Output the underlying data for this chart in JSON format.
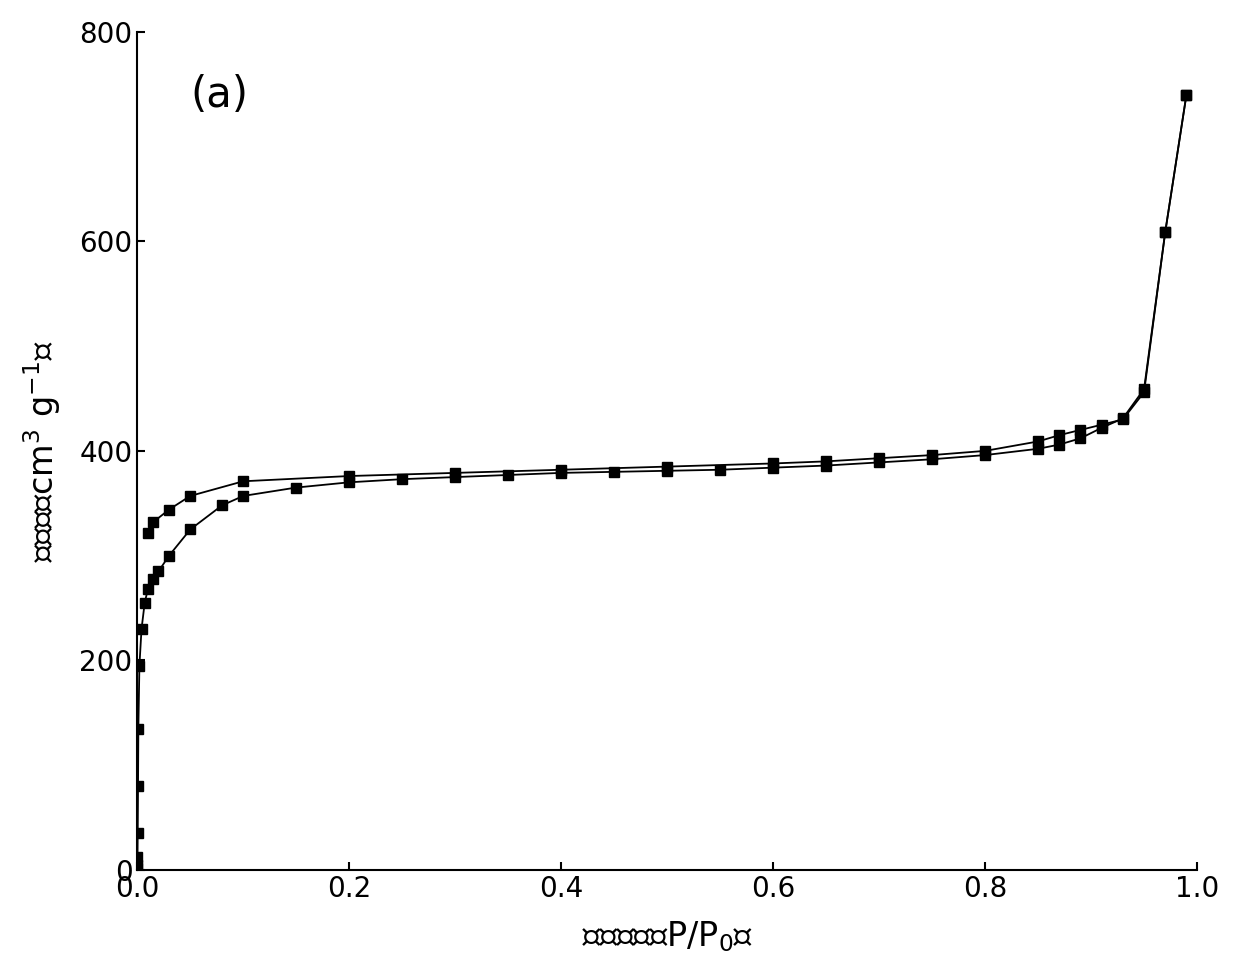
{
  "label_annotation": "(a)",
  "xlim": [
    0.0,
    1.0
  ],
  "ylim": [
    0,
    800
  ],
  "yticks": [
    0,
    200,
    400,
    600,
    800
  ],
  "xticks": [
    0.0,
    0.2,
    0.4,
    0.6,
    0.8,
    1.0
  ],
  "background_color": "#ffffff",
  "line_color": "#000000",
  "marker": "s",
  "markersize": 7,
  "linewidth": 1.3,
  "adsorption_x": [
    5e-05,
    0.0001,
    0.0002,
    0.0004,
    0.0007,
    0.001,
    0.002,
    0.004,
    0.007,
    0.01,
    0.015,
    0.02,
    0.03,
    0.05,
    0.08,
    0.1,
    0.15,
    0.2,
    0.25,
    0.3,
    0.35,
    0.4,
    0.45,
    0.5,
    0.55,
    0.6,
    0.65,
    0.7,
    0.75,
    0.8,
    0.85,
    0.87,
    0.89,
    0.91,
    0.93,
    0.95,
    0.97,
    0.99
  ],
  "adsorption_y": [
    2,
    5,
    12,
    35,
    80,
    135,
    195,
    230,
    255,
    268,
    278,
    285,
    300,
    325,
    348,
    357,
    365,
    370,
    373,
    375,
    377,
    379,
    380,
    381,
    382,
    384,
    386,
    389,
    392,
    396,
    402,
    406,
    412,
    422,
    431,
    459,
    609,
    740
  ],
  "desorption_x": [
    0.99,
    0.97,
    0.95,
    0.93,
    0.91,
    0.89,
    0.87,
    0.85,
    0.8,
    0.75,
    0.7,
    0.65,
    0.6,
    0.5,
    0.4,
    0.3,
    0.2,
    0.1,
    0.05,
    0.03,
    0.015,
    0.01
  ],
  "desorption_y": [
    740,
    609,
    456,
    430,
    425,
    420,
    415,
    409,
    400,
    396,
    393,
    390,
    388,
    385,
    382,
    379,
    376,
    371,
    357,
    344,
    332,
    322
  ]
}
